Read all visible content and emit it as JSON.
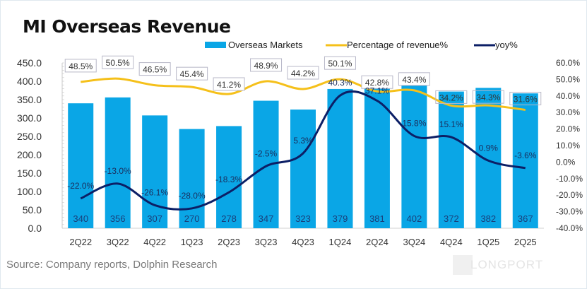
{
  "chart_data": {
    "type": "bar",
    "title": "MI Overseas Revenue",
    "source": "Source: Company reports, Dolphin Research",
    "watermark": "LONGPORT",
    "categories": [
      "2Q22",
      "3Q22",
      "4Q22",
      "1Q23",
      "2Q23",
      "3Q23",
      "4Q23",
      "1Q24",
      "2Q24",
      "3Q24",
      "4Q24",
      "1Q25",
      "2Q25"
    ],
    "series": [
      {
        "name": "Overseas Markets",
        "type": "bar",
        "axis": "left",
        "color": "#0aa6e6",
        "values": [
          340,
          356,
          307,
          270,
          278,
          347,
          323,
          379,
          381,
          402,
          372,
          382,
          367
        ]
      },
      {
        "name": "Percentage of revenue%",
        "type": "line",
        "axis": "right",
        "color": "#f5c01a",
        "values": [
          48.5,
          50.5,
          46.5,
          45.4,
          41.2,
          48.9,
          44.2,
          50.1,
          42.8,
          43.4,
          34.2,
          34.3,
          31.6
        ],
        "labels": [
          "48.5%",
          "50.5%",
          "46.5%",
          "45.4%",
          "41.2%",
          "48.9%",
          "44.2%",
          "50.1%",
          "42.8%",
          "43.4%",
          "34.2%",
          "34.3%",
          "31.6%"
        ]
      },
      {
        "name": "yoy%",
        "type": "line",
        "axis": "right",
        "color": "#0c1f66",
        "values": [
          -22.0,
          -13.0,
          -26.1,
          -28.0,
          -18.3,
          -2.5,
          5.3,
          40.3,
          37.1,
          15.8,
          15.1,
          0.9,
          -3.6
        ],
        "labels": [
          "-22.0%",
          "-13.0%",
          "-26.1%",
          "-28.0%",
          "-18.3%",
          "-2.5%",
          "5.3%",
          "40.3%",
          "37.1%",
          "15.8%",
          "15.1%",
          "0.9%",
          "-3.6%"
        ]
      }
    ],
    "left_axis": {
      "range": [
        0,
        450
      ],
      "ticks": [
        "0.0",
        "50.0",
        "100.0",
        "150.0",
        "200.0",
        "250.0",
        "300.0",
        "350.0",
        "400.0",
        "450.0"
      ]
    },
    "right_axis": {
      "range": [
        -40,
        60
      ],
      "ticks": [
        "-40.0%",
        "-30.0%",
        "-20.0%",
        "-10.0%",
        "0.0%",
        "10.0%",
        "20.0%",
        "30.0%",
        "40.0%",
        "50.0%",
        "60.0%"
      ]
    },
    "legend": {
      "placement": "top-right",
      "items": [
        "Overseas Markets",
        "Percentage of revenue%",
        "yoy%"
      ]
    },
    "grid": false
  }
}
